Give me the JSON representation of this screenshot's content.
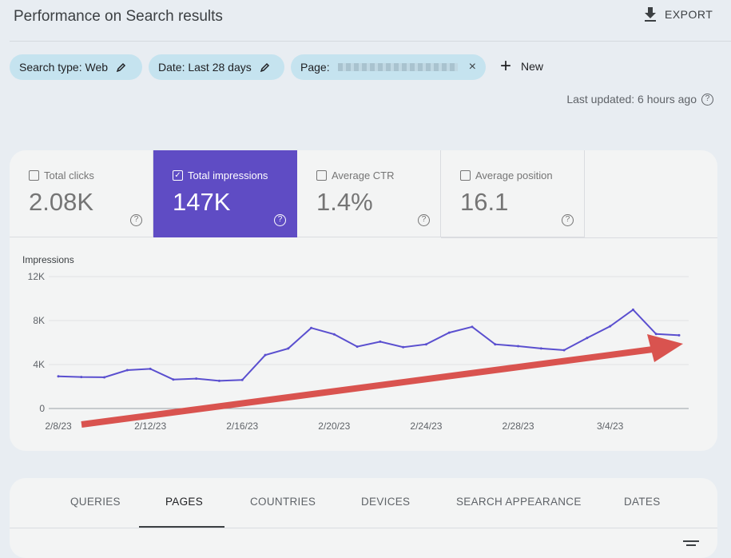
{
  "header": {
    "title": "Performance on Search results",
    "export_label": "EXPORT",
    "export_icon": "download-icon"
  },
  "filters": {
    "chips": [
      {
        "label": "Search type: Web",
        "icon": "pencil-icon"
      },
      {
        "label": "Date: Last 28 days",
        "icon": "pencil-icon"
      },
      {
        "label": "Page:",
        "icon": "close-icon"
      }
    ],
    "new_label": "New"
  },
  "last_updated": "Last updated: 6 hours ago",
  "metrics": [
    {
      "label": "Total clicks",
      "value": "2.08K",
      "checked": false
    },
    {
      "label": "Total impressions",
      "value": "147K",
      "checked": true
    },
    {
      "label": "Average CTR",
      "value": "1.4%",
      "checked": false
    },
    {
      "label": "Average position",
      "value": "16.1",
      "checked": false
    }
  ],
  "colors": {
    "accent": "#5f4cc4",
    "line": "#5a4fcf",
    "arrow": "#d9534f",
    "chip": "#c5e3ef"
  },
  "chart_data": {
    "type": "line",
    "ylabel": "Impressions",
    "ylim": [
      0,
      12000
    ],
    "yticks": [
      "0",
      "4K",
      "8K",
      "12K"
    ],
    "ytick_values": [
      0,
      4000,
      8000,
      12000
    ],
    "xtick_labels": [
      "2/8/23",
      "2/12/23",
      "2/16/23",
      "2/20/23",
      "2/24/23",
      "2/28/23",
      "3/4/23"
    ],
    "x": [
      "2/8/23",
      "2/9/23",
      "2/10/23",
      "2/11/23",
      "2/12/23",
      "2/13/23",
      "2/14/23",
      "2/15/23",
      "2/16/23",
      "2/17/23",
      "2/18/23",
      "2/19/23",
      "2/20/23",
      "2/21/23",
      "2/22/23",
      "2/23/23",
      "2/24/23",
      "2/25/23",
      "2/26/23",
      "2/27/23",
      "2/28/23",
      "3/1/23",
      "3/2/23",
      "3/3/23",
      "3/4/23",
      "3/5/23",
      "3/6/23",
      "3/7/23"
    ],
    "values": [
      2930,
      2860,
      2840,
      3490,
      3610,
      2640,
      2720,
      2520,
      2600,
      4860,
      5460,
      7330,
      6750,
      5630,
      6080,
      5580,
      5840,
      6900,
      7430,
      5840,
      5670,
      5460,
      5310,
      6420,
      7480,
      8990,
      6780,
      6660
    ],
    "grid": true,
    "annotation": "upward trend arrow"
  },
  "tabs": [
    "QUERIES",
    "PAGES",
    "COUNTRIES",
    "DEVICES",
    "SEARCH APPEARANCE",
    "DATES"
  ],
  "selected_tab": "PAGES"
}
